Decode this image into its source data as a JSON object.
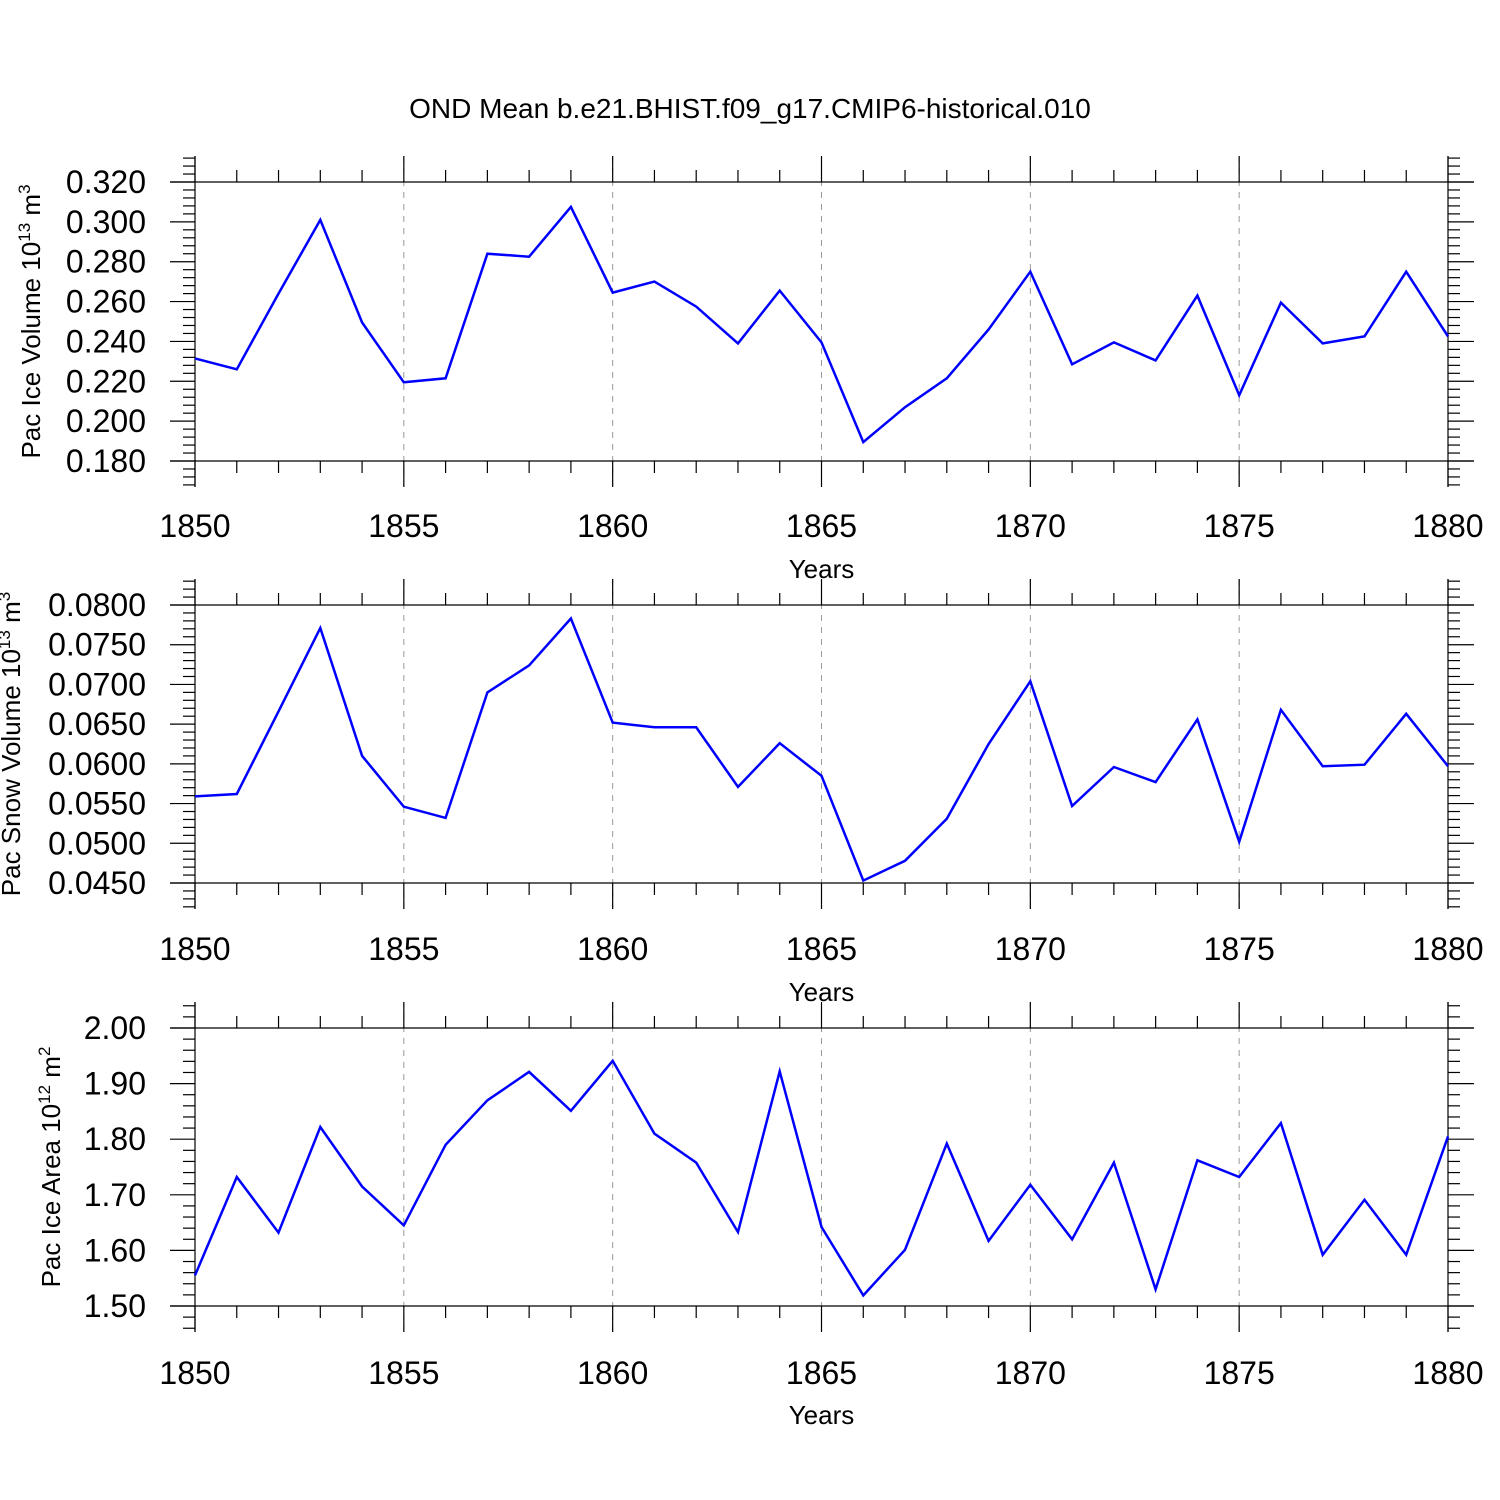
{
  "title": "OND Mean b.e21.BHIST.f09_g17.CMIP6-historical.010",
  "colors": {
    "series": "#0000ff",
    "axis": "#000000",
    "grid": "#999999"
  },
  "chart_data": [
    {
      "type": "line",
      "ylabel": {
        "prefix": "Pac Ice Volume 10",
        "exp": "13",
        "unit": " m",
        "unit_exp": "3"
      },
      "xlabel": "Years",
      "xlim": [
        1850,
        1880
      ],
      "ylim": [
        0.18,
        0.32
      ],
      "xticks": [
        "1850",
        "1855",
        "1860",
        "1865",
        "1870",
        "1875",
        "1880"
      ],
      "yticks": [
        "0.180",
        "0.200",
        "0.220",
        "0.240",
        "0.260",
        "0.280",
        "0.300",
        "0.320"
      ],
      "x": [
        1850,
        1851,
        1852,
        1853,
        1854,
        1855,
        1856,
        1857,
        1858,
        1859,
        1860,
        1861,
        1862,
        1863,
        1864,
        1865,
        1866,
        1867,
        1868,
        1869,
        1870,
        1871,
        1872,
        1873,
        1874,
        1875,
        1876,
        1877,
        1878,
        1879,
        1880
      ],
      "values": [
        0.2315,
        0.226,
        0.264,
        0.301,
        0.2495,
        0.2195,
        0.2215,
        0.284,
        0.2825,
        0.3075,
        0.2645,
        0.27,
        0.2575,
        0.239,
        0.2655,
        0.2395,
        0.1895,
        0.207,
        0.2215,
        0.246,
        0.275,
        0.2285,
        0.2395,
        0.2305,
        0.263,
        0.213,
        0.2595,
        0.239,
        0.2425,
        0.275,
        0.2425
      ]
    },
    {
      "type": "line",
      "ylabel": {
        "prefix": "Pac Snow Volume 10",
        "exp": "13",
        "unit": " m",
        "unit_exp": "3"
      },
      "xlabel": "Years",
      "xlim": [
        1850,
        1880
      ],
      "ylim": [
        0.045,
        0.08
      ],
      "xticks": [
        "1850",
        "1855",
        "1860",
        "1865",
        "1870",
        "1875",
        "1880"
      ],
      "yticks": [
        "0.0450",
        "0.0500",
        "0.0550",
        "0.0600",
        "0.0650",
        "0.0700",
        "0.0750",
        "0.0800"
      ],
      "x": [
        1850,
        1851,
        1852,
        1853,
        1854,
        1855,
        1856,
        1857,
        1858,
        1859,
        1860,
        1861,
        1862,
        1863,
        1864,
        1865,
        1866,
        1867,
        1868,
        1869,
        1870,
        1871,
        1872,
        1873,
        1874,
        1875,
        1876,
        1877,
        1878,
        1879,
        1880
      ],
      "values": [
        0.0559,
        0.0562,
        0.0666,
        0.0771,
        0.061,
        0.0546,
        0.0532,
        0.069,
        0.0724,
        0.0783,
        0.0652,
        0.0646,
        0.0646,
        0.0571,
        0.0626,
        0.0585,
        0.0453,
        0.0478,
        0.0531,
        0.0625,
        0.0704,
        0.0547,
        0.0596,
        0.0577,
        0.0656,
        0.0502,
        0.0668,
        0.0597,
        0.0599,
        0.0663,
        0.0597
      ]
    },
    {
      "type": "line",
      "ylabel": {
        "prefix": "Pac Ice Area 10",
        "exp": "12",
        "unit": " m",
        "unit_exp": "2"
      },
      "xlabel": "Years",
      "xlim": [
        1850,
        1880
      ],
      "ylim": [
        1.5,
        2.0
      ],
      "xticks": [
        "1850",
        "1855",
        "1860",
        "1865",
        "1870",
        "1875",
        "1880"
      ],
      "yticks": [
        "1.50",
        "1.60",
        "1.70",
        "1.80",
        "1.90",
        "2.00"
      ],
      "x": [
        1850,
        1851,
        1852,
        1853,
        1854,
        1855,
        1856,
        1857,
        1858,
        1859,
        1860,
        1861,
        1862,
        1863,
        1864,
        1865,
        1866,
        1867,
        1868,
        1869,
        1870,
        1871,
        1872,
        1873,
        1874,
        1875,
        1876,
        1877,
        1878,
        1879,
        1880
      ],
      "values": [
        1.555,
        1.732,
        1.632,
        1.822,
        1.715,
        1.645,
        1.79,
        1.87,
        1.921,
        1.851,
        1.941,
        1.81,
        1.758,
        1.633,
        1.922,
        1.642,
        1.519,
        1.601,
        1.792,
        1.617,
        1.718,
        1.62,
        1.758,
        1.53,
        1.762,
        1.732,
        1.829,
        1.592,
        1.691,
        1.592,
        1.805
      ]
    }
  ]
}
